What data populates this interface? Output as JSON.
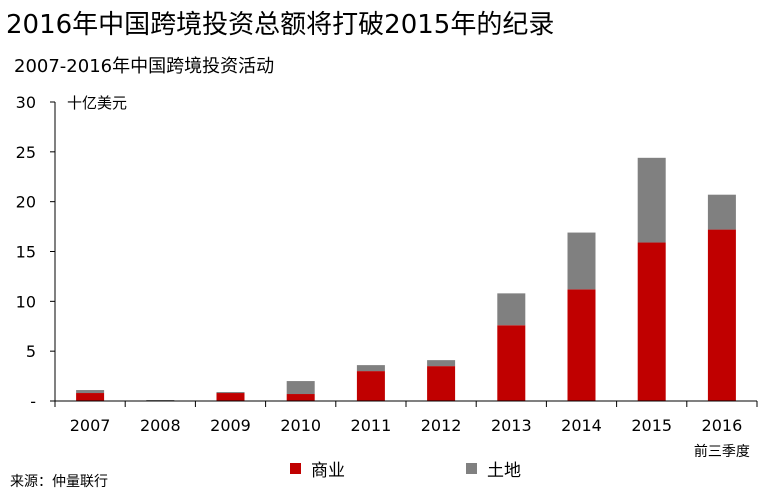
{
  "page": {
    "title": "2016年中国跨境投资总额将打破2015年的纪录",
    "subtitle": "2007-2016年中国跨境投资活动",
    "unit_label": "十亿美元",
    "source": "来源：仲量联行"
  },
  "colors": {
    "commercial": "#c00000",
    "land": "#808080",
    "axis": "#000000"
  },
  "chart_data": {
    "type": "bar",
    "stacked": true,
    "categories": [
      "2007",
      "2008",
      "2009",
      "2010",
      "2011",
      "2012",
      "2013",
      "2014",
      "2015",
      "2016"
    ],
    "category_notes": [
      "",
      "",
      "",
      "",
      "",
      "",
      "",
      "",
      "",
      "前三季度"
    ],
    "series": [
      {
        "name": "商业",
        "values": [
          0.8,
          0.0,
          0.8,
          0.7,
          3.0,
          3.5,
          7.6,
          11.2,
          15.9,
          17.2
        ]
      },
      {
        "name": "土地",
        "values": [
          0.3,
          0.1,
          0.1,
          1.3,
          0.6,
          0.6,
          3.2,
          5.7,
          8.5,
          3.5
        ]
      }
    ],
    "ylim": [
      0,
      30
    ],
    "yticks": [
      0,
      5,
      10,
      15,
      20,
      25,
      30
    ],
    "ytick_labels": [
      "-",
      "5",
      "10",
      "15",
      "20",
      "25",
      "30"
    ],
    "legend_position": "bottom",
    "grid": false
  }
}
